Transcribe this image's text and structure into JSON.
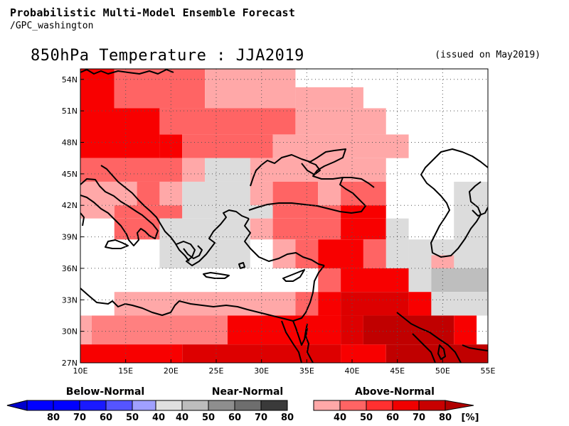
{
  "header": {
    "title": "Probabilistic Multi-Model Ensemble Forecast",
    "subtitle": "/GPC_washington"
  },
  "map": {
    "title": "850hPa Temperature : JJA2019",
    "issued": "(issued on May2019)",
    "lon_range": [
      10,
      55
    ],
    "lat_range": [
      27,
      55
    ],
    "x_ticks": [
      {
        "value": 10,
        "label": "10E"
      },
      {
        "value": 15,
        "label": "15E"
      },
      {
        "value": 20,
        "label": "20E"
      },
      {
        "value": 25,
        "label": "25E"
      },
      {
        "value": 30,
        "label": "30E"
      },
      {
        "value": 35,
        "label": "35E"
      },
      {
        "value": 40,
        "label": "40E"
      },
      {
        "value": 45,
        "label": "45E"
      },
      {
        "value": 50,
        "label": "50E"
      },
      {
        "value": 55,
        "label": "55E"
      }
    ],
    "y_ticks": [
      {
        "value": 27,
        "label": "27N"
      },
      {
        "value": 30,
        "label": "30N"
      },
      {
        "value": 33,
        "label": "33N"
      },
      {
        "value": 36,
        "label": "36N"
      },
      {
        "value": 39,
        "label": "39N"
      },
      {
        "value": 42,
        "label": "42N"
      },
      {
        "value": 45,
        "label": "45N"
      },
      {
        "value": 48,
        "label": "48N"
      },
      {
        "value": 51,
        "label": "51N"
      },
      {
        "value": 54,
        "label": "54N"
      }
    ],
    "grid": true,
    "cells": [
      {
        "lon": [
          10,
          13.75
        ],
        "lat": [
          50.75,
          55
        ],
        "cat": "A70"
      },
      {
        "lon": [
          13.75,
          23.75
        ],
        "lat": [
          51.25,
          55
        ],
        "cat": "A60"
      },
      {
        "lon": [
          23.75,
          33.75
        ],
        "lat": [
          50.75,
          55
        ],
        "cat": "A40"
      },
      {
        "lon": [
          33.75,
          41.25
        ],
        "lat": [
          51.25,
          53.25
        ],
        "cat": "A40"
      },
      {
        "lon": [
          10,
          18.75
        ],
        "lat": [
          46.5,
          51.25
        ],
        "cat": "A70"
      },
      {
        "lon": [
          18.75,
          21.25
        ],
        "lat": [
          46.5,
          48.75
        ],
        "cat": "A70"
      },
      {
        "lon": [
          18.75,
          33.75
        ],
        "lat": [
          48.75,
          51.25
        ],
        "cat": "A60"
      },
      {
        "lon": [
          21.25,
          31.25
        ],
        "lat": [
          46.5,
          48.75
        ],
        "cat": "A60"
      },
      {
        "lon": [
          33.75,
          43.75
        ],
        "lat": [
          48.75,
          51.25
        ],
        "cat": "A40"
      },
      {
        "lon": [
          31.25,
          46.25
        ],
        "lat": [
          46.5,
          48.75
        ],
        "cat": "A40"
      },
      {
        "lon": [
          10,
          21.25
        ],
        "lat": [
          44.25,
          46.5
        ],
        "cat": "A60"
      },
      {
        "lon": [
          21.25,
          23.75
        ],
        "lat": [
          44.25,
          46.5
        ],
        "cat": "A40"
      },
      {
        "lon": [
          23.75,
          28.75
        ],
        "lat": [
          44.25,
          46.5
        ],
        "cat": "N40"
      },
      {
        "lon": [
          28.75,
          43.75
        ],
        "lat": [
          44.25,
          46.5
        ],
        "cat": "A40"
      },
      {
        "lon": [
          10,
          16.25
        ],
        "lat": [
          42,
          44.25
        ],
        "cat": "A40"
      },
      {
        "lon": [
          16.25,
          18.75
        ],
        "lat": [
          42,
          44.25
        ],
        "cat": "A60"
      },
      {
        "lon": [
          18.75,
          21.25
        ],
        "lat": [
          42,
          44.25
        ],
        "cat": "A40"
      },
      {
        "lon": [
          21.25,
          28.75
        ],
        "lat": [
          42,
          44.25
        ],
        "cat": "N40"
      },
      {
        "lon": [
          28.75,
          31.25
        ],
        "lat": [
          42,
          44.25
        ],
        "cat": "A40"
      },
      {
        "lon": [
          31.25,
          36.25
        ],
        "lat": [
          42,
          44.25
        ],
        "cat": "A60"
      },
      {
        "lon": [
          36.25,
          38.75
        ],
        "lat": [
          42,
          44.25
        ],
        "cat": "A40"
      },
      {
        "lon": [
          38.75,
          43.75
        ],
        "lat": [
          42,
          44.25
        ],
        "cat": "A60"
      },
      {
        "lon": [
          51.25,
          55
        ],
        "lat": [
          36,
          44.25
        ],
        "cat": "N40"
      },
      {
        "lon": [
          10,
          13.75
        ],
        "lat": [
          40.75,
          42
        ],
        "cat": "A40"
      },
      {
        "lon": [
          13.75,
          21.25
        ],
        "lat": [
          40.75,
          42
        ],
        "cat": "A60"
      },
      {
        "lon": [
          21.25,
          31.25
        ],
        "lat": [
          40.75,
          42
        ],
        "cat": "N40"
      },
      {
        "lon": [
          31.25,
          38.75
        ],
        "lat": [
          40.75,
          42
        ],
        "cat": "A60"
      },
      {
        "lon": [
          38.75,
          43.75
        ],
        "lat": [
          40.75,
          42
        ],
        "cat": "A70"
      },
      {
        "lon": [
          13.75,
          18.75
        ],
        "lat": [
          38.75,
          40.75
        ],
        "cat": "A60"
      },
      {
        "lon": [
          18.75,
          28.75
        ],
        "lat": [
          38.75,
          40.75
        ],
        "cat": "N40"
      },
      {
        "lon": [
          28.75,
          31.25
        ],
        "lat": [
          38.75,
          40.75
        ],
        "cat": "A40"
      },
      {
        "lon": [
          31.25,
          38.75
        ],
        "lat": [
          38.75,
          40.75
        ],
        "cat": "A60"
      },
      {
        "lon": [
          38.75,
          43.75
        ],
        "lat": [
          38.75,
          40.75
        ],
        "cat": "A70"
      },
      {
        "lon": [
          43.75,
          46.25
        ],
        "lat": [
          36,
          40.75
        ],
        "cat": "N40"
      },
      {
        "lon": [
          18.75,
          28.75
        ],
        "lat": [
          36,
          38.75
        ],
        "cat": "N40"
      },
      {
        "lon": [
          31.25,
          33.75
        ],
        "lat": [
          36,
          38.75
        ],
        "cat": "A40"
      },
      {
        "lon": [
          33.75,
          36.25
        ],
        "lat": [
          36,
          38.75
        ],
        "cat": "A60"
      },
      {
        "lon": [
          36.25,
          41.25
        ],
        "lat": [
          36,
          38.75
        ],
        "cat": "A70"
      },
      {
        "lon": [
          41.25,
          43.75
        ],
        "lat": [
          36,
          38.75
        ],
        "cat": "A60"
      },
      {
        "lon": [
          46.25,
          51.25
        ],
        "lat": [
          36,
          38.75
        ],
        "cat": "N40"
      },
      {
        "lon": [
          48.75,
          51.25
        ],
        "lat": [
          36,
          37.25
        ],
        "cat": "A40"
      },
      {
        "lon": [
          36.25,
          38.75
        ],
        "lat": [
          33.75,
          36
        ],
        "cat": "A60"
      },
      {
        "lon": [
          38.75,
          46.25
        ],
        "lat": [
          33.75,
          36
        ],
        "cat": "A70"
      },
      {
        "lon": [
          46.25,
          48.75
        ],
        "lat": [
          33.75,
          36
        ],
        "cat": "N40"
      },
      {
        "lon": [
          48.75,
          55
        ],
        "lat": [
          33.75,
          36
        ],
        "cat": "N50"
      },
      {
        "lon": [
          13.75,
          33.75
        ],
        "lat": [
          31.5,
          33.75
        ],
        "cat": "A40"
      },
      {
        "lon": [
          33.75,
          36.25
        ],
        "lat": [
          31.5,
          33.75
        ],
        "cat": "A60"
      },
      {
        "lon": [
          36.25,
          38.75
        ],
        "lat": [
          31.5,
          33.75
        ],
        "cat": "A70"
      },
      {
        "lon": [
          38.75,
          46.25
        ],
        "lat": [
          31.5,
          33.75
        ],
        "cat": "A80"
      },
      {
        "lon": [
          46.25,
          48.75
        ],
        "lat": [
          31.5,
          33.75
        ],
        "cat": "A70"
      },
      {
        "lon": [
          48.75,
          55
        ],
        "lat": [
          31.5,
          33.75
        ],
        "cat": "N40"
      },
      {
        "lon": [
          10,
          11.25
        ],
        "lat": [
          28.75,
          31.5
        ],
        "cat": "A40"
      },
      {
        "lon": [
          11.25,
          26.25
        ],
        "lat": [
          28.75,
          31.5
        ],
        "cat": "A50"
      },
      {
        "lon": [
          26.25,
          38.75
        ],
        "lat": [
          28.75,
          31.5
        ],
        "cat": "A70"
      },
      {
        "lon": [
          38.75,
          41.25
        ],
        "lat": [
          28.75,
          31.5
        ],
        "cat": "A80"
      },
      {
        "lon": [
          41.25,
          51.25
        ],
        "lat": [
          28.75,
          31.5
        ],
        "cat": "A90"
      },
      {
        "lon": [
          51.25,
          53.75
        ],
        "lat": [
          28.75,
          31.5
        ],
        "cat": "A70"
      },
      {
        "lon": [
          10,
          21.25
        ],
        "lat": [
          27,
          28.75
        ],
        "cat": "A70"
      },
      {
        "lon": [
          21.25,
          38.75
        ],
        "lat": [
          27,
          28.75
        ],
        "cat": "A80"
      },
      {
        "lon": [
          38.75,
          43.75
        ],
        "lat": [
          27,
          28.75
        ],
        "cat": "A70"
      },
      {
        "lon": [
          43.75,
          55
        ],
        "lat": [
          27,
          28.75
        ],
        "cat": "A90"
      }
    ]
  },
  "legend": {
    "below": {
      "title": "Below-Normal",
      "labels": [
        "80",
        "70",
        "60",
        "50",
        "40"
      ],
      "colors": [
        "#0000ff",
        "#0000ff",
        "#1a1aff",
        "#5555ff",
        "#a0a0ff"
      ],
      "tip_color": "#0000cc"
    },
    "near": {
      "title": "Near-Normal",
      "labels": [
        "40",
        "50",
        "60",
        "70",
        "80"
      ],
      "colors": [
        "#e0e0e0",
        "#bdbdbd",
        "#8e8e8e",
        "#6e6e6e",
        "#3a3a3a"
      ]
    },
    "above": {
      "title": "Above-Normal",
      "labels": [
        "40",
        "50",
        "60",
        "70",
        "80"
      ],
      "colors": [
        "#ffa8a8",
        "#ff6464",
        "#ff3030",
        "#f00000",
        "#c80000"
      ],
      "tip_color": "#b00000",
      "unit": "[%]"
    }
  },
  "colors": {
    "A40": "#ffa8a8",
    "A50": "#ff8080",
    "A60": "#ff6464",
    "A70": "#f80000",
    "A80": "#dd0000",
    "A90": "#c00000",
    "N40": "#dcdcdc",
    "N50": "#bebebe",
    "coast": "#000000",
    "grid": "#555555"
  }
}
